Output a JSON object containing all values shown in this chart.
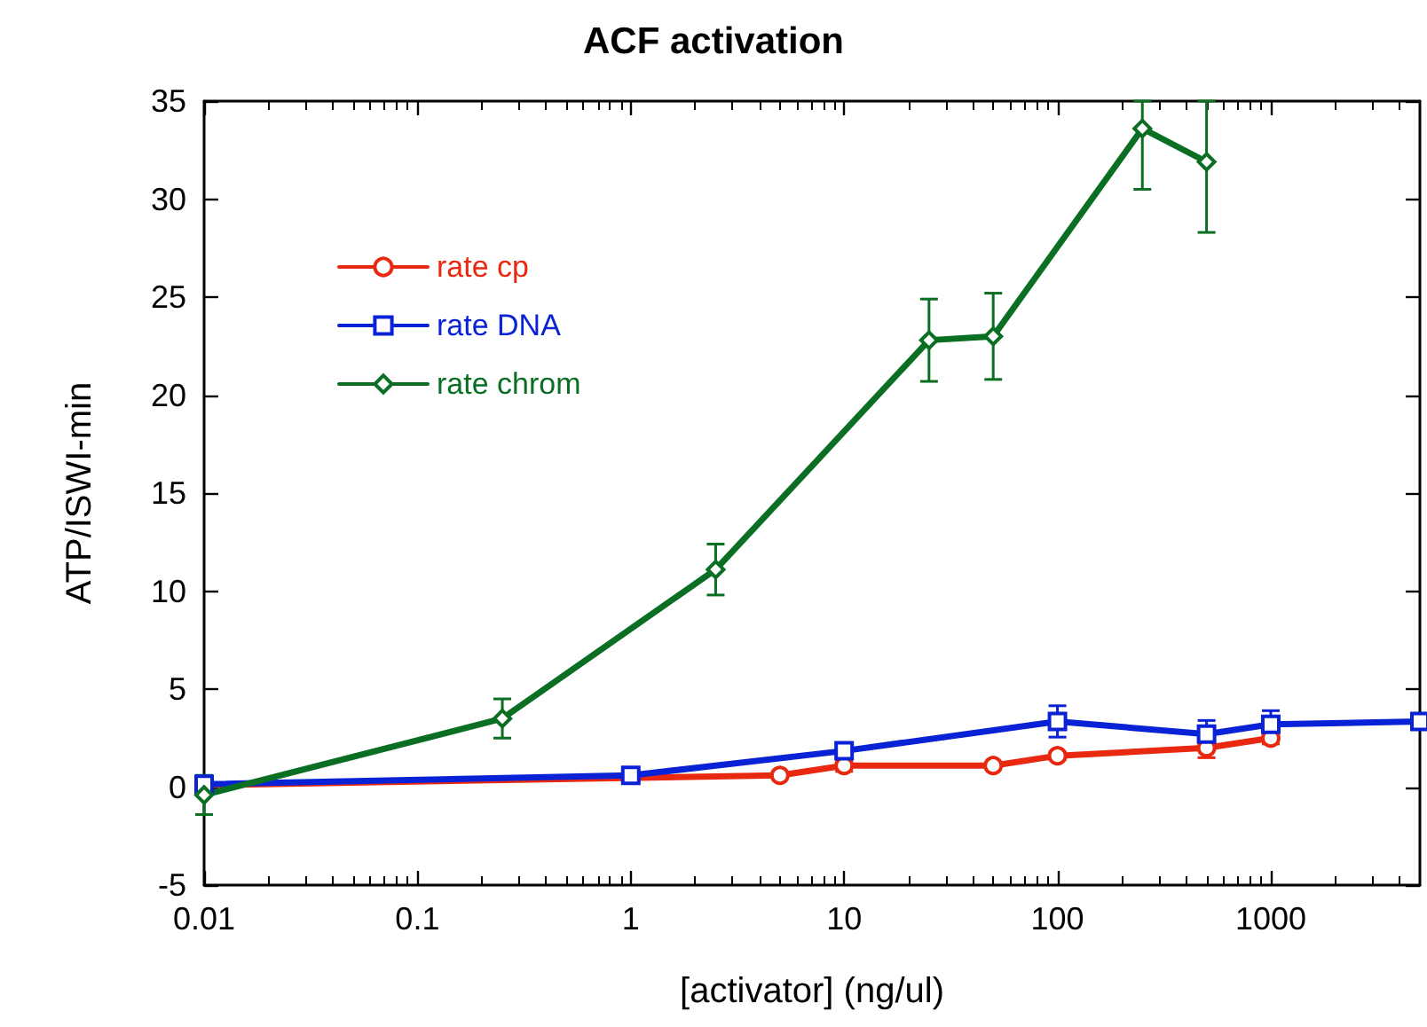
{
  "chart_data": {
    "type": "line",
    "title": "ACF activation",
    "xlabel": "[activator] (ng/ul)",
    "ylabel": "ATP/ISWI-min",
    "log": "x",
    "xlim": [
      0.01,
      5000
    ],
    "xticks": [
      0.01,
      0.1,
      1,
      10,
      100,
      1000
    ],
    "ylim": [
      -5,
      35
    ],
    "yticks": [
      -5,
      0,
      5,
      10,
      15,
      20,
      25,
      30,
      35
    ],
    "grid": false,
    "legend": "top left",
    "line_style": "solid",
    "series": [
      {
        "name": "rate cp",
        "color": "#e8290f",
        "marker": "circle",
        "x": [
          0.01,
          5,
          10,
          50,
          100,
          500,
          1000
        ],
        "values": [
          0.1,
          0.6,
          1.1,
          1.1,
          1.6,
          2.0,
          2.5
        ],
        "errors": [
          null,
          null,
          0.3,
          null,
          0.2,
          0.5,
          0.3
        ]
      },
      {
        "name": "rate DNA",
        "color": "#0a22d6",
        "marker": "square",
        "x": [
          0.01,
          1,
          10,
          100,
          500,
          1000,
          5000
        ],
        "values": [
          0.15,
          0.6,
          1.85,
          3.35,
          2.7,
          3.2,
          3.35
        ],
        "errors": [
          null,
          null,
          0.4,
          0.8,
          0.7,
          0.7,
          null
        ]
      },
      {
        "name": "rate chrom",
        "color": "#0a6e23",
        "marker": "diamond",
        "x": [
          0.01,
          0.25,
          2.5,
          25,
          50,
          250,
          500
        ],
        "values": [
          -0.4,
          3.5,
          11.1,
          22.8,
          23.0,
          33.6,
          31.9
        ],
        "errors": [
          1,
          1,
          1.3,
          2.1,
          2.2,
          [
            30.5,
            35
          ],
          [
            28.3,
            35
          ]
        ]
      }
    ]
  }
}
